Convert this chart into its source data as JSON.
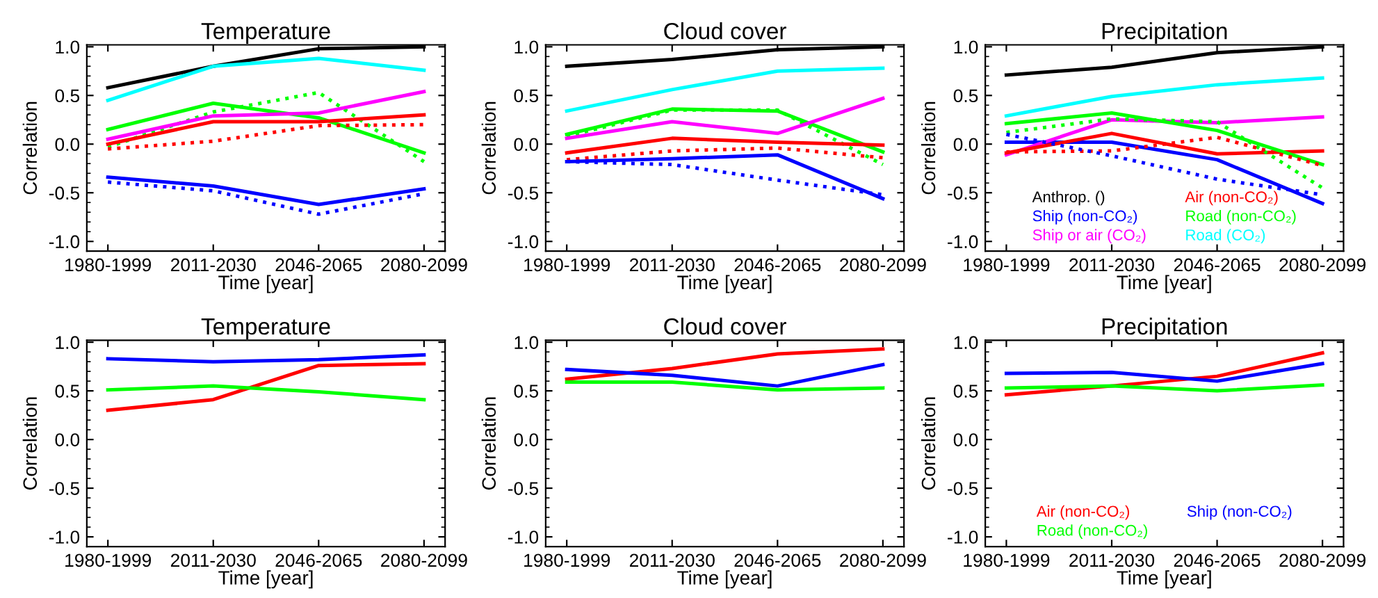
{
  "chart_data": [
    {
      "type": "line",
      "title": "Temperature",
      "xlabel": "Time [year]",
      "ylabel": "Correlation",
      "categories": [
        "1980-1999",
        "2011-2030",
        "2046-2065",
        "2080-2099"
      ],
      "ylim": [
        -1.1,
        1.02
      ],
      "yticks": [
        {
          "value": -1.0,
          "label": "-1.0"
        },
        {
          "value": -0.5,
          "label": "-0.5"
        },
        {
          "value": 0.0,
          "label": "0.0"
        },
        {
          "value": 0.5,
          "label": "0.5"
        },
        {
          "value": 1.0,
          "label": "1.0"
        }
      ],
      "grid": false,
      "legend": false,
      "series": [
        {
          "color": "#000000",
          "values": [
            0.58,
            0.8,
            0.98,
            1.0
          ]
        },
        {
          "color": "#00ffff",
          "values": [
            0.45,
            0.8,
            0.88,
            0.76
          ]
        },
        {
          "color": "#00ff00",
          "values": [
            0.15,
            0.42,
            0.27,
            -0.09
          ]
        },
        {
          "color": "#00ff00",
          "line_style": "dotted",
          "values": [
            -0.03,
            0.33,
            0.53,
            -0.18
          ]
        },
        {
          "color": "#ff00ff",
          "values": [
            0.05,
            0.29,
            0.32,
            0.54
          ]
        },
        {
          "color": "#ff0000",
          "values": [
            0.0,
            0.23,
            0.23,
            0.3
          ]
        },
        {
          "color": "#ff0000",
          "line_style": "dotted",
          "values": [
            -0.05,
            0.03,
            0.19,
            0.2
          ]
        },
        {
          "color": "#0000ff",
          "values": [
            -0.34,
            -0.43,
            -0.62,
            -0.46
          ]
        },
        {
          "color": "#0000ff",
          "line_style": "dotted",
          "values": [
            -0.39,
            -0.48,
            -0.72,
            -0.51
          ]
        }
      ]
    },
    {
      "type": "line",
      "title": "Cloud cover",
      "xlabel": "Time [year]",
      "ylabel": "Correlation",
      "categories": [
        "1980-1999",
        "2011-2030",
        "2046-2065",
        "2080-2099"
      ],
      "ylim": [
        -1.1,
        1.02
      ],
      "yticks": [
        {
          "value": -1.0,
          "label": "-1.0"
        },
        {
          "value": -0.5,
          "label": "-0.5"
        },
        {
          "value": 0.0,
          "label": "0.0"
        },
        {
          "value": 0.5,
          "label": "0.5"
        },
        {
          "value": 1.0,
          "label": "1.0"
        }
      ],
      "grid": false,
      "legend": false,
      "series": [
        {
          "color": "#000000",
          "values": [
            0.8,
            0.87,
            0.97,
            1.0
          ]
        },
        {
          "color": "#00ffff",
          "values": [
            0.34,
            0.56,
            0.75,
            0.78
          ]
        },
        {
          "color": "#00ff00",
          "values": [
            0.1,
            0.36,
            0.34,
            -0.08
          ]
        },
        {
          "color": "#00ff00",
          "line_style": "dotted",
          "values": [
            0.08,
            0.35,
            0.35,
            -0.21
          ]
        },
        {
          "color": "#ff00ff",
          "values": [
            0.06,
            0.23,
            0.11,
            0.47
          ]
        },
        {
          "color": "#ff0000",
          "values": [
            -0.09,
            0.06,
            0.02,
            -0.01
          ]
        },
        {
          "color": "#ff0000",
          "line_style": "dotted",
          "values": [
            -0.16,
            -0.07,
            -0.04,
            -0.14
          ]
        },
        {
          "color": "#0000ff",
          "values": [
            -0.18,
            -0.15,
            -0.11,
            -0.56
          ]
        },
        {
          "color": "#0000ff",
          "line_style": "dotted",
          "values": [
            -0.18,
            -0.21,
            -0.37,
            -0.52
          ]
        }
      ]
    },
    {
      "type": "line",
      "title": "Precipitation",
      "xlabel": "Time [year]",
      "ylabel": "Correlation",
      "categories": [
        "1980-1999",
        "2011-2030",
        "2046-2065",
        "2080-2099"
      ],
      "ylim": [
        -1.1,
        1.02
      ],
      "yticks": [
        {
          "value": -1.0,
          "label": "-1.0"
        },
        {
          "value": -0.5,
          "label": "-0.5"
        },
        {
          "value": 0.0,
          "label": "0.0"
        },
        {
          "value": 0.5,
          "label": "0.5"
        },
        {
          "value": 1.0,
          "label": "1.0"
        }
      ],
      "grid": false,
      "legend": "bottom",
      "series": [
        {
          "name": "Anthrop. ()",
          "color": "#000000",
          "values": [
            0.71,
            0.79,
            0.94,
            1.0
          ]
        },
        {
          "name": "Ship (non-CO₂)",
          "color": "#0000ff",
          "values": [
            0.02,
            0.02,
            -0.16,
            -0.61
          ]
        },
        {
          "name": "Ship or air (CO₂)",
          "color": "#ff00ff",
          "values": [
            -0.11,
            0.25,
            0.22,
            0.28
          ]
        },
        {
          "name": "Air (non-CO₂)",
          "color": "#ff0000",
          "values": [
            -0.09,
            0.11,
            -0.1,
            -0.07
          ]
        },
        {
          "name": "Road (non-CO₂)",
          "color": "#00ff00",
          "values": [
            0.21,
            0.32,
            0.14,
            -0.21
          ]
        },
        {
          "name": "Road (CO₂)",
          "color": "#00ffff",
          "values": [
            0.29,
            0.49,
            0.61,
            0.68
          ]
        },
        {
          "color": "#00ff00",
          "line_style": "dotted",
          "values": [
            0.12,
            0.26,
            0.23,
            -0.45
          ]
        },
        {
          "color": "#ff0000",
          "line_style": "dotted",
          "values": [
            -0.08,
            -0.07,
            0.07,
            -0.22
          ]
        },
        {
          "color": "#0000ff",
          "line_style": "dotted",
          "values": [
            0.1,
            -0.12,
            -0.36,
            -0.52
          ]
        }
      ]
    },
    {
      "type": "line",
      "title": "Temperature",
      "xlabel": "Time [year]",
      "ylabel": "Correlation",
      "categories": [
        "1980-1999",
        "2011-2030",
        "2046-2065",
        "2080-2099"
      ],
      "ylim": [
        -1.1,
        1.02
      ],
      "yticks": [
        {
          "value": -1.0,
          "label": "-1.0"
        },
        {
          "value": -0.5,
          "label": "-0.5"
        },
        {
          "value": 0.0,
          "label": "0.0"
        },
        {
          "value": 0.5,
          "label": "0.5"
        },
        {
          "value": 1.0,
          "label": "1.0"
        }
      ],
      "grid": false,
      "legend": false,
      "series": [
        {
          "color": "#0000ff",
          "values": [
            0.83,
            0.8,
            0.82,
            0.87
          ]
        },
        {
          "color": "#ff0000",
          "values": [
            0.3,
            0.41,
            0.76,
            0.78
          ]
        },
        {
          "color": "#00ff00",
          "values": [
            0.51,
            0.55,
            0.49,
            0.41
          ]
        }
      ]
    },
    {
      "type": "line",
      "title": "Cloud cover",
      "xlabel": "Time [year]",
      "ylabel": "Correlation",
      "categories": [
        "1980-1999",
        "2011-2030",
        "2046-2065",
        "2080-2099"
      ],
      "ylim": [
        -1.1,
        1.02
      ],
      "yticks": [
        {
          "value": -1.0,
          "label": "-1.0"
        },
        {
          "value": -0.5,
          "label": "-0.5"
        },
        {
          "value": 0.0,
          "label": "0.0"
        },
        {
          "value": 0.5,
          "label": "0.5"
        },
        {
          "value": 1.0,
          "label": "1.0"
        }
      ],
      "grid": false,
      "legend": false,
      "series": [
        {
          "color": "#ff0000",
          "values": [
            0.62,
            0.73,
            0.88,
            0.93
          ]
        },
        {
          "color": "#0000ff",
          "values": [
            0.72,
            0.66,
            0.55,
            0.77
          ]
        },
        {
          "color": "#00ff00",
          "values": [
            0.59,
            0.59,
            0.51,
            0.53
          ]
        }
      ]
    },
    {
      "type": "line",
      "title": "Precipitation",
      "xlabel": "Time [year]",
      "ylabel": "Correlation",
      "categories": [
        "1980-1999",
        "2011-2030",
        "2046-2065",
        "2080-2099"
      ],
      "ylim": [
        -1.1,
        1.02
      ],
      "yticks": [
        {
          "value": -1.0,
          "label": "-1.0"
        },
        {
          "value": -0.5,
          "label": "-0.5"
        },
        {
          "value": 0.0,
          "label": "0.0"
        },
        {
          "value": 0.5,
          "label": "0.5"
        },
        {
          "value": 1.0,
          "label": "1.0"
        }
      ],
      "grid": false,
      "legend": "bottom",
      "series": [
        {
          "name": "Air (non-CO₂)",
          "color": "#ff0000",
          "values": [
            0.46,
            0.55,
            0.65,
            0.89
          ]
        },
        {
          "name": "Road (non-CO₂)",
          "color": "#00ff00",
          "values": [
            0.53,
            0.55,
            0.5,
            0.56
          ]
        },
        {
          "name": "Ship (non-CO₂)",
          "color": "#0000ff",
          "values": [
            0.68,
            0.69,
            0.6,
            0.78
          ]
        }
      ]
    }
  ]
}
